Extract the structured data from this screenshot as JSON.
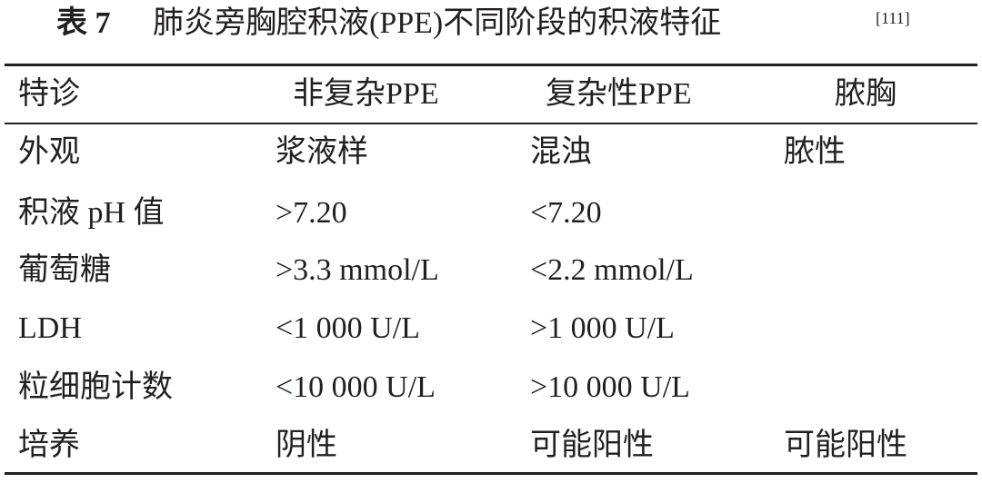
{
  "title": {
    "label": "表 7",
    "text": "肺炎旁胸腔积液(PPE)不同阶段的积液特征",
    "ref": "[111]"
  },
  "table": {
    "header": [
      "特诊",
      "非复杂PPE",
      "复杂性PPE",
      "脓胸"
    ],
    "rows": [
      [
        "外观",
        "浆液样",
        "混浊",
        "脓性"
      ],
      [
        "积液 pH 值",
        ">7.20",
        "<7.20"
      ],
      [
        "葡萄糖",
        ">3.3 mmol/L",
        "<2.2 mmol/L"
      ],
      [
        "LDH",
        "<1 000 U/L",
        ">1 000 U/L"
      ],
      [
        "粒细胞计数",
        "<10 000 U/L",
        ">10 000 U/L"
      ],
      [
        "培养",
        "阴性",
        "可能阳性",
        "可能阳性"
      ]
    ]
  }
}
